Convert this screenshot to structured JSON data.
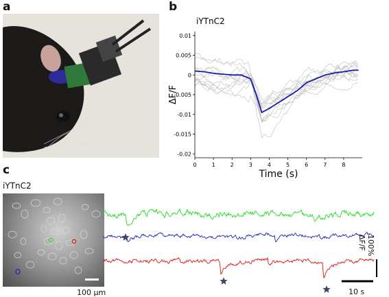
{
  "panels": {
    "a": {
      "letter": "a"
    },
    "b": {
      "letter": "b"
    },
    "c": {
      "letter": "c"
    }
  },
  "colors": {
    "mean": "#1a1aa8",
    "trials": "#bdbdbd",
    "green": "#22dd22",
    "blue": "#2222bb",
    "red": "#dd1111",
    "star": "#3a4a66"
  },
  "chart_data": [
    {
      "type": "line",
      "title": "iYTnC2",
      "xlabel": "Time (s)",
      "ylabel": "ΔF/F",
      "xlim": [
        0,
        9
      ],
      "ylim": [
        -0.021,
        0.011
      ],
      "x_ticks": [
        "0",
        "1",
        "2",
        "3",
        "4",
        "5",
        "6",
        "7",
        "8"
      ],
      "y_ticks": [
        "0.01",
        "0.005",
        "0",
        "-0.005",
        "-0.01",
        "-0.015",
        "-0.02"
      ],
      "series": [
        {
          "role": "mean",
          "x": [
            0,
            0.5,
            1,
            1.5,
            2,
            2.5,
            3,
            3.3,
            3.6,
            3.8,
            4,
            4.5,
            5,
            5.5,
            6,
            6.5,
            7,
            7.5,
            8,
            8.5,
            8.8
          ],
          "y": [
            0.001,
            0.0008,
            0.0004,
            0.0002,
            0.0,
            0.0,
            -0.001,
            -0.005,
            -0.0095,
            -0.009,
            -0.0085,
            -0.007,
            -0.0055,
            -0.004,
            -0.002,
            -0.001,
            0.0,
            0.0005,
            0.0008,
            0.0012,
            0.0012
          ]
        }
      ]
    },
    {
      "type": "line",
      "title": "",
      "series": [
        {
          "name": "",
          "color": "green"
        },
        {
          "name": "",
          "color": "blue"
        },
        {
          "name": "",
          "color": "red"
        }
      ],
      "scale_labels": {
        "amplitude": "100% ΔF/F",
        "time": "10 s"
      }
    }
  ],
  "panel_c": {
    "label": "iYTnC2",
    "image_scale": "100 μm",
    "amplitude_scale": "100% ΔF/F",
    "time_scale": "10 s"
  }
}
